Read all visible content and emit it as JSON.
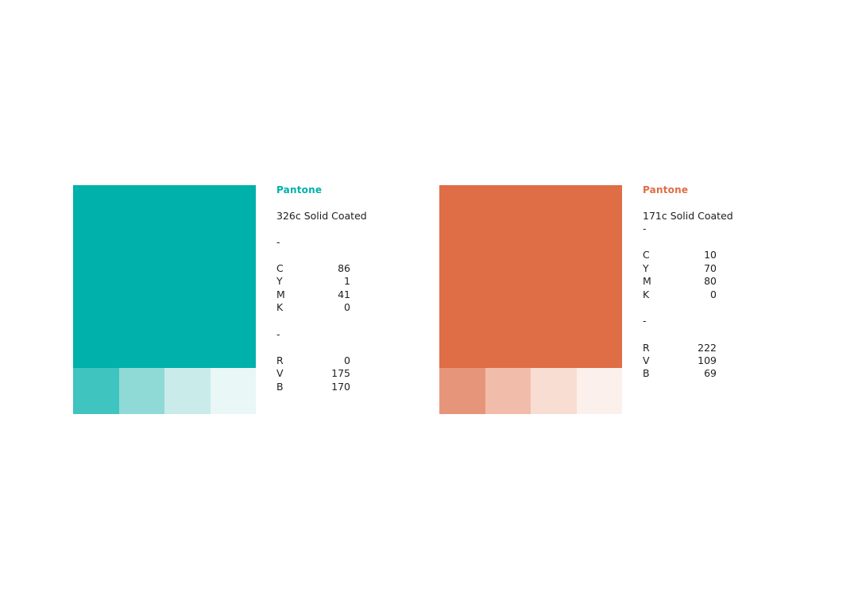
{
  "swatches": [
    {
      "id": "teal",
      "brand_label": "Pantone",
      "pantone_name": "326c Solid Coated",
      "separator": "-",
      "colors": {
        "main": "#00b0ab",
        "tints": [
          "#3fc4bf",
          "#8fd9d6",
          "#c9ecea",
          "#e9f7f6"
        ]
      },
      "cmyk": [
        {
          "key": "C",
          "value": "86"
        },
        {
          "key": "Y",
          "value": "1"
        },
        {
          "key": "M",
          "value": "41"
        },
        {
          "key": "K",
          "value": "0"
        }
      ],
      "rvb": [
        {
          "key": "R",
          "value": "0"
        },
        {
          "key": "V",
          "value": "175"
        },
        {
          "key": "B",
          "value": "170"
        }
      ]
    },
    {
      "id": "orange",
      "brand_label": "Pantone",
      "pantone_name": "171c Solid Coated",
      "separator": "-",
      "colors": {
        "main": "#df6d45",
        "tints": [
          "#e7957a",
          "#f1bca9",
          "#f8ddd3",
          "#fcf0ec"
        ]
      },
      "cmyk": [
        {
          "key": "C",
          "value": "10"
        },
        {
          "key": "Y",
          "value": "70"
        },
        {
          "key": "M",
          "value": "80"
        },
        {
          "key": "K",
          "value": "0"
        }
      ],
      "rvb": [
        {
          "key": "R",
          "value": "222"
        },
        {
          "key": "V",
          "value": "109"
        },
        {
          "key": "B",
          "value": "69"
        }
      ]
    }
  ]
}
